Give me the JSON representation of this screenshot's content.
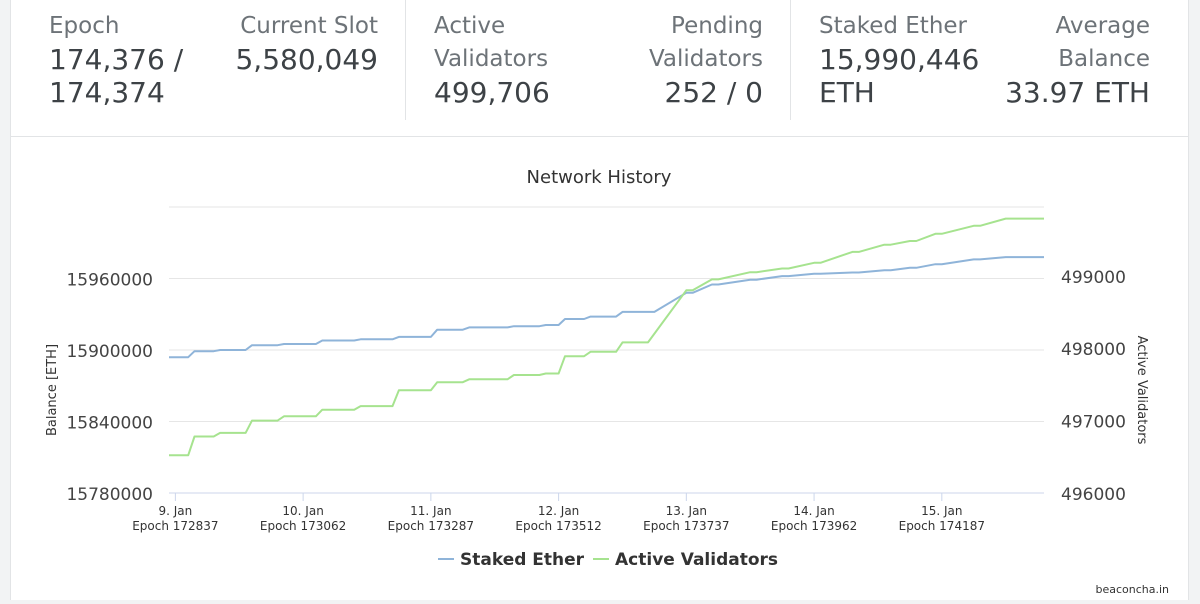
{
  "stats": {
    "epoch": {
      "label": "Epoch",
      "value": "174,376 / 174,374"
    },
    "current_slot": {
      "label": "Current Slot",
      "value": "5,580,049"
    },
    "active_validators": {
      "label": "Active Validators",
      "value": "499,706"
    },
    "pending_validators": {
      "label": "Pending Validators",
      "value": "252 / 0"
    },
    "staked_ether": {
      "label": "Staked Ether",
      "value": "15,990,446 ETH"
    },
    "average_balance": {
      "label": "Average Balance",
      "value": "33.97 ETH"
    }
  },
  "chart_data": {
    "type": "line",
    "title": "Network History",
    "ylabel_left": "Balance [ETH]",
    "ylabel_right": "Active Validators",
    "y_left_ticks": [
      15780000,
      15840000,
      15900000,
      15960000
    ],
    "y_right_ticks": [
      496000,
      497000,
      498000,
      499000
    ],
    "ylim_left": [
      15780000,
      16020000
    ],
    "ylim_right": [
      496000,
      499950
    ],
    "x_ticks": [
      {
        "x": 0,
        "date": "9. Jan",
        "epoch": "Epoch 172837"
      },
      {
        "x": 1,
        "date": "10. Jan",
        "epoch": "Epoch 173062"
      },
      {
        "x": 2,
        "date": "11. Jan",
        "epoch": "Epoch 173287"
      },
      {
        "x": 3,
        "date": "12. Jan",
        "epoch": "Epoch 173512"
      },
      {
        "x": 4,
        "date": "13. Jan",
        "epoch": "Epoch 173737"
      },
      {
        "x": 5,
        "date": "14. Jan",
        "epoch": "Epoch 173962"
      },
      {
        "x": 6,
        "date": "15. Jan",
        "epoch": "Epoch 174187"
      }
    ],
    "xlim": [
      -0.05,
      6.8
    ],
    "grid": true,
    "legend": "bottom",
    "colors": {
      "staked_ether": "#8fb4d9",
      "active_validators": "#a6e38f"
    },
    "series": [
      {
        "name": "Staked Ether",
        "axis": "left",
        "color": "#8fb4d9",
        "x": [
          -0.05,
          0.1,
          0.15,
          0.3,
          0.35,
          0.55,
          0.6,
          0.8,
          0.85,
          1.1,
          1.15,
          1.4,
          1.45,
          1.7,
          1.75,
          2.0,
          2.05,
          2.25,
          2.3,
          2.6,
          2.65,
          2.85,
          2.9,
          3.0,
          3.05,
          3.2,
          3.25,
          3.45,
          3.5,
          3.75,
          4.0,
          4.05,
          4.2,
          4.25,
          4.5,
          4.55,
          4.75,
          4.8,
          5.0,
          5.05,
          5.3,
          5.35,
          5.55,
          5.6,
          5.75,
          5.8,
          5.95,
          6.0,
          6.25,
          6.3,
          6.5,
          6.55,
          6.8
        ],
        "y": [
          15894000,
          15894000,
          15899000,
          15899000,
          15900000,
          15900000,
          15904000,
          15904000,
          15905000,
          15905000,
          15908000,
          15908000,
          15909000,
          15909000,
          15911000,
          15911000,
          15917000,
          15917000,
          15919000,
          15919000,
          15920000,
          15920000,
          15921000,
          15921000,
          15926000,
          15926000,
          15928000,
          15928000,
          15932000,
          15932000,
          15948000,
          15948000,
          15955000,
          15955000,
          15959000,
          15959000,
          15962000,
          15962000,
          15964000,
          15964000,
          15965000,
          15965000,
          15967000,
          15967000,
          15969000,
          15969000,
          15972000,
          15972000,
          15976000,
          15976000,
          15978000,
          15978000,
          15978000
        ]
      },
      {
        "name": "Active Validators",
        "axis": "right",
        "color": "#a6e38f",
        "x": [
          -0.05,
          0.1,
          0.15,
          0.3,
          0.35,
          0.55,
          0.6,
          0.8,
          0.85,
          1.1,
          1.15,
          1.4,
          1.45,
          1.7,
          1.75,
          2.0,
          2.05,
          2.25,
          2.3,
          2.6,
          2.65,
          2.85,
          2.9,
          3.0,
          3.05,
          3.2,
          3.25,
          3.45,
          3.5,
          3.7,
          4.0,
          4.05,
          4.2,
          4.25,
          4.5,
          4.55,
          4.75,
          4.8,
          5.0,
          5.05,
          5.3,
          5.35,
          5.55,
          5.6,
          5.75,
          5.8,
          5.95,
          6.0,
          6.25,
          6.3,
          6.5,
          6.55,
          6.8
        ],
        "y": [
          496520,
          496520,
          496780,
          496780,
          496830,
          496830,
          497000,
          497000,
          497060,
          497060,
          497150,
          497150,
          497200,
          497200,
          497420,
          497420,
          497530,
          497530,
          497570,
          497570,
          497630,
          497630,
          497650,
          497650,
          497890,
          497890,
          497950,
          497950,
          498080,
          498080,
          498800,
          498800,
          498950,
          498950,
          499050,
          499050,
          499100,
          499100,
          499180,
          499180,
          499330,
          499330,
          499430,
          499430,
          499480,
          499480,
          499580,
          499580,
          499690,
          499690,
          499790,
          499790,
          499790
        ]
      }
    ]
  },
  "footer": {
    "credit": "beaconcha.in"
  }
}
